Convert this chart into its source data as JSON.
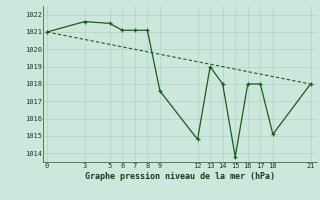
{
  "x": [
    0,
    3,
    5,
    6,
    7,
    8,
    9,
    12,
    13,
    14,
    15,
    16,
    17,
    18,
    21
  ],
  "y": [
    1021.0,
    1021.6,
    1021.5,
    1021.1,
    1021.1,
    1021.1,
    1017.6,
    1014.8,
    1019.0,
    1018.0,
    1013.8,
    1018.0,
    1018.0,
    1015.1,
    1018.0
  ],
  "trend_x": [
    0,
    21
  ],
  "trend_y": [
    1021.0,
    1018.0
  ],
  "xticks": [
    0,
    3,
    5,
    6,
    7,
    8,
    9,
    12,
    13,
    14,
    15,
    16,
    17,
    18,
    21
  ],
  "yticks": [
    1014,
    1015,
    1016,
    1017,
    1018,
    1019,
    1020,
    1021,
    1022
  ],
  "ylim": [
    1013.5,
    1022.5
  ],
  "xlim": [
    -0.3,
    21.5
  ],
  "xlabel": "Graphe pression niveau de la mer (hPa)",
  "line_color": "#1a5c1a",
  "bg_color": "#cce8dc",
  "grid_color": "#b0d4c4"
}
